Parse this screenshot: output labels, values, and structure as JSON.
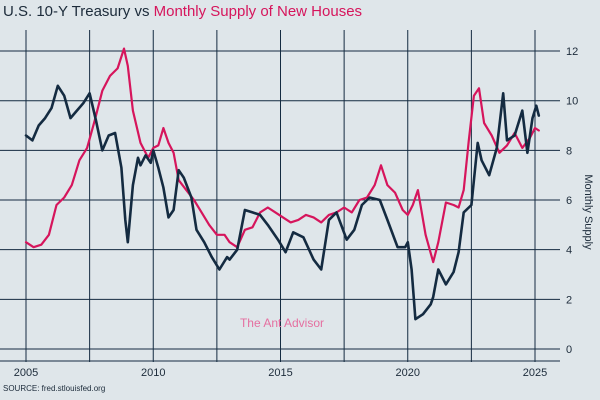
{
  "title_part1": "U.S. 10-Y Treasury vs ",
  "title_part2": "Monthly Supply of New Houses",
  "source": "SOURCE: fred.stlouisfed.org",
  "watermark": "The Ant Advisor",
  "colors": {
    "treasury": "#142b41",
    "supply": "#d6155c",
    "grid": "#142b41",
    "background": "#dfe6ea"
  },
  "chart_data": {
    "type": "line",
    "title": "U.S. 10-Y Treasury vs Monthly Supply of New Houses",
    "xlabel": "",
    "ylabel": "Monthly Supply",
    "xlim": [
      2004.9,
      2025.5
    ],
    "ylim": [
      0,
      13
    ],
    "x_ticks": [
      2005,
      2010,
      2015,
      2020,
      2025
    ],
    "y_ticks": [
      0,
      2,
      4,
      6,
      8,
      10,
      12
    ],
    "grid": true,
    "series": [
      {
        "name": "U.S. 10-Y Treasury",
        "axis": "left (unlabeled)",
        "color": "#142b41",
        "x": [
          2005.0,
          2005.25,
          2005.5,
          2005.75,
          2006.0,
          2006.25,
          2006.5,
          2006.75,
          2007.0,
          2007.25,
          2007.5,
          2007.75,
          2008.0,
          2008.25,
          2008.5,
          2008.75,
          2008.9,
          2009.0,
          2009.2,
          2009.4,
          2009.5,
          2009.7,
          2009.9,
          2010.0,
          2010.2,
          2010.4,
          2010.6,
          2010.8,
          2011.0,
          2011.2,
          2011.5,
          2011.7,
          2012.0,
          2012.3,
          2012.6,
          2012.9,
          2013.0,
          2013.3,
          2013.6,
          2013.9,
          2014.2,
          2014.5,
          2014.9,
          2015.2,
          2015.5,
          2015.9,
          2016.3,
          2016.6,
          2016.9,
          2017.2,
          2017.6,
          2017.9,
          2018.2,
          2018.5,
          2018.9,
          2019.2,
          2019.6,
          2019.9,
          2020.0,
          2020.15,
          2020.3,
          2020.6,
          2020.9,
          2021.0,
          2021.2,
          2021.5,
          2021.8,
          2022.0,
          2022.2,
          2022.5,
          2022.75,
          2022.9,
          2023.2,
          2023.5,
          2023.75,
          2023.9,
          2024.2,
          2024.5,
          2024.7,
          2024.9,
          2025.05,
          2025.15
        ],
        "values": [
          8.6,
          8.4,
          9.0,
          9.3,
          9.7,
          10.6,
          10.2,
          9.3,
          9.6,
          9.9,
          10.3,
          9.2,
          8.0,
          8.6,
          8.7,
          7.3,
          5.2,
          4.3,
          6.6,
          7.7,
          7.4,
          7.8,
          7.5,
          8.0,
          7.3,
          6.5,
          5.3,
          5.6,
          7.2,
          6.9,
          6.1,
          4.8,
          4.3,
          3.7,
          3.2,
          3.7,
          3.6,
          4.0,
          5.6,
          5.5,
          5.4,
          5.0,
          4.4,
          3.9,
          4.7,
          4.5,
          3.6,
          3.2,
          5.2,
          5.5,
          4.4,
          4.8,
          5.8,
          6.1,
          6.0,
          5.2,
          4.1,
          4.1,
          4.3,
          3.2,
          1.2,
          1.4,
          1.8,
          2.1,
          3.2,
          2.6,
          3.1,
          3.9,
          5.5,
          5.8,
          8.3,
          7.6,
          7.0,
          8.1,
          10.3,
          8.4,
          8.6,
          9.6,
          7.9,
          9.3,
          9.8,
          9.4
        ]
      },
      {
        "name": "Monthly Supply of New Houses",
        "axis": "right (Monthly Supply)",
        "color": "#d6155c",
        "x": [
          2005.0,
          2005.3,
          2005.6,
          2005.9,
          2006.2,
          2006.5,
          2006.8,
          2007.1,
          2007.4,
          2007.7,
          2008.0,
          2008.3,
          2008.6,
          2008.85,
          2009.0,
          2009.2,
          2009.5,
          2009.8,
          2010.0,
          2010.2,
          2010.4,
          2010.6,
          2010.8,
          2011.0,
          2011.3,
          2011.6,
          2011.9,
          2012.2,
          2012.5,
          2012.8,
          2013.0,
          2013.3,
          2013.6,
          2013.9,
          2014.2,
          2014.5,
          2014.8,
          2015.1,
          2015.4,
          2015.7,
          2016.0,
          2016.3,
          2016.6,
          2016.9,
          2017.2,
          2017.5,
          2017.8,
          2018.1,
          2018.4,
          2018.7,
          2018.95,
          2019.2,
          2019.5,
          2019.8,
          2020.0,
          2020.2,
          2020.4,
          2020.7,
          2021.0,
          2021.2,
          2021.5,
          2021.8,
          2022.0,
          2022.2,
          2022.4,
          2022.6,
          2022.8,
          2023.0,
          2023.3,
          2023.6,
          2023.9,
          2024.2,
          2024.5,
          2024.8,
          2025.0,
          2025.15
        ],
        "values": [
          4.3,
          4.1,
          4.2,
          4.6,
          5.8,
          6.1,
          6.6,
          7.6,
          8.1,
          9.2,
          10.4,
          11.0,
          11.3,
          12.1,
          11.4,
          9.6,
          8.3,
          7.7,
          8.1,
          8.2,
          8.9,
          8.3,
          7.9,
          6.8,
          6.4,
          6.0,
          5.5,
          5.0,
          4.6,
          4.6,
          4.3,
          4.1,
          4.8,
          4.9,
          5.5,
          5.7,
          5.5,
          5.3,
          5.1,
          5.2,
          5.4,
          5.3,
          5.1,
          5.4,
          5.5,
          5.7,
          5.5,
          6.0,
          6.1,
          6.6,
          7.4,
          6.6,
          6.3,
          5.6,
          5.4,
          5.8,
          6.4,
          4.6,
          3.5,
          4.3,
          5.9,
          5.8,
          5.7,
          6.4,
          8.4,
          10.2,
          10.5,
          9.1,
          8.6,
          7.9,
          8.2,
          8.7,
          8.1,
          8.5,
          8.9,
          8.8
        ]
      }
    ],
    "annotations": [
      "The Ant Advisor"
    ]
  }
}
